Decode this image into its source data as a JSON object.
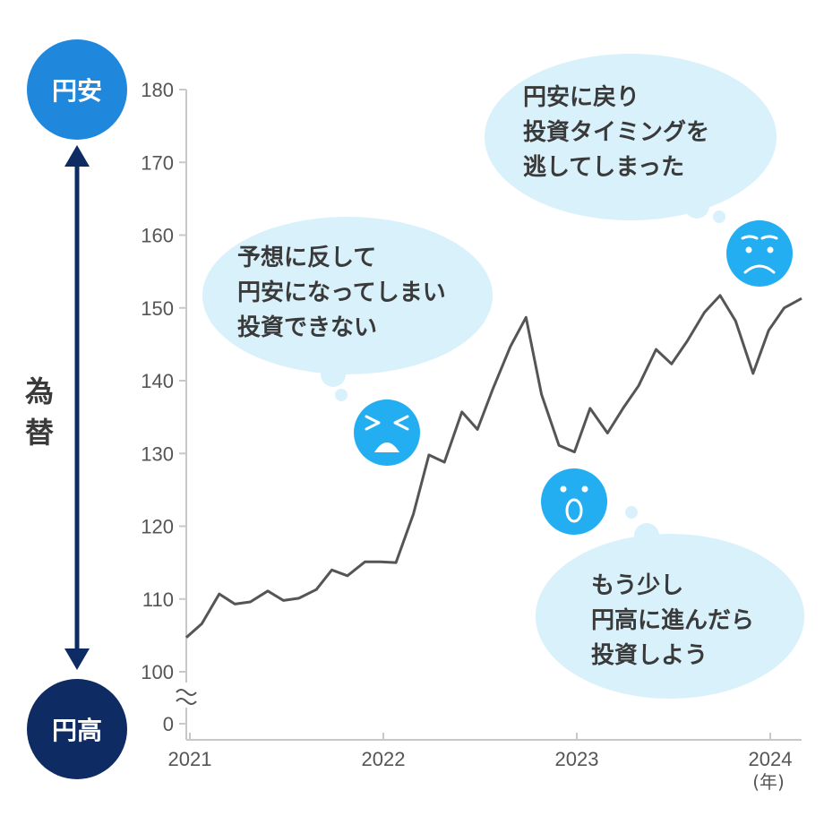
{
  "chart_data": {
    "type": "line",
    "xlabel": "",
    "x_unit": "(年)",
    "x_ticks": [
      "2021",
      "2022",
      "2023",
      "2024"
    ],
    "y_ticks": [
      0,
      100,
      110,
      120,
      130,
      140,
      150,
      160,
      170,
      180
    ],
    "y_axis_broken": true,
    "ylim": [
      100,
      180
    ],
    "xlim": [
      2021.0,
      2024.17
    ],
    "grid": false,
    "series": [
      {
        "color": "#555555",
        "x": [
          2021.0,
          2021.08,
          2021.17,
          2021.25,
          2021.33,
          2021.42,
          2021.5,
          2021.58,
          2021.67,
          2021.75,
          2021.83,
          2021.92,
          2022.0,
          2022.08,
          2022.17,
          2022.25,
          2022.33,
          2022.42,
          2022.5,
          2022.58,
          2022.67,
          2022.75,
          2022.83,
          2022.92,
          2023.0,
          2023.08,
          2023.17,
          2023.25,
          2023.33,
          2023.42,
          2023.5,
          2023.58,
          2023.67,
          2023.75,
          2023.83,
          2023.92,
          2024.0,
          2024.08,
          2024.17
        ],
        "values": [
          104.7,
          106.6,
          110.7,
          109.3,
          109.6,
          111.1,
          109.8,
          110.1,
          111.3,
          114.0,
          113.2,
          115.1,
          115.1,
          115.0,
          121.7,
          129.8,
          128.8,
          135.7,
          133.3,
          138.9,
          144.7,
          148.7,
          138.1,
          131.1,
          130.2,
          136.2,
          132.8,
          136.2,
          139.3,
          144.3,
          142.3,
          145.4,
          149.4,
          151.7,
          148.2,
          141.0,
          146.9,
          150.0,
          151.3
        ]
      }
    ],
    "annotations": [
      {
        "id": "yen_weak_regret",
        "lines": [
          "予想に反して",
          "円安になってしまい",
          "投資できない"
        ]
      },
      {
        "id": "yen_weak_missed",
        "lines": [
          "円安に戻り",
          "投資タイミングを",
          "逃してしまった"
        ]
      },
      {
        "id": "yen_strong_wait",
        "lines": [
          "もう少し",
          "円高に進んだら",
          "投資しよう"
        ]
      }
    ]
  },
  "side_axis": {
    "top_label": "円安",
    "bottom_label": "円高",
    "title_line1": "為",
    "title_line2": "替"
  },
  "colors": {
    "top_circle": "#1f87dc",
    "bottom_circle": "#0f2b63",
    "arrow": "#0f2b63",
    "bubble": "#d9f1fb",
    "face": "#23aef2",
    "line": "#555555",
    "axis": "#c8c8c8"
  },
  "icons": [
    "frustrated-face-icon",
    "sad-face-icon",
    "surprised-face-icon"
  ]
}
